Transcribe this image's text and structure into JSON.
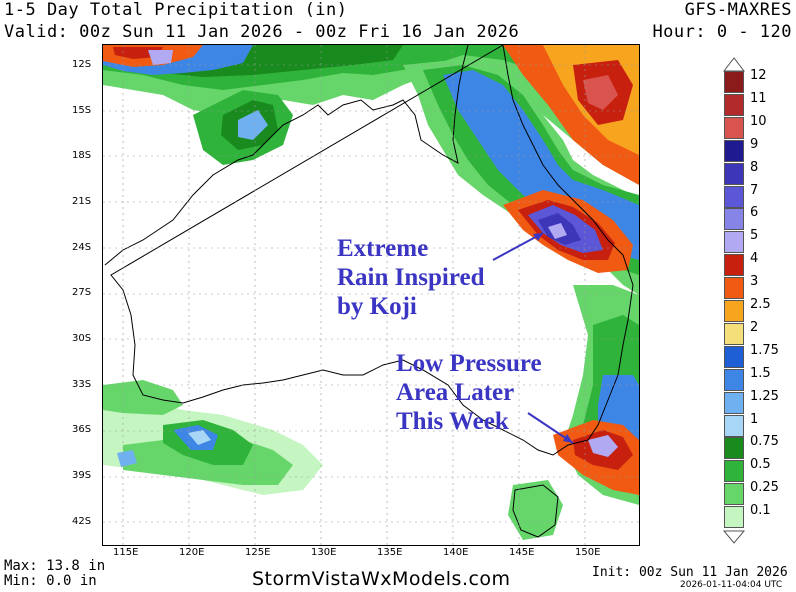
{
  "header": {
    "title": "1-5 Day Total Precipitation (in)",
    "model": "GFS-MAXRES",
    "valid": "Valid: 00z Sun 11 Jan 2026 - 00z Fri 16 Jan 2026",
    "hour": "Hour: 0 - 120"
  },
  "map": {
    "lat_labels": [
      "12S",
      "15S",
      "18S",
      "21S",
      "24S",
      "27S",
      "30S",
      "33S",
      "36S",
      "39S",
      "42S"
    ],
    "lon_labels": [
      "115E",
      "120E",
      "125E",
      "130E",
      "135E",
      "140E",
      "145E",
      "150E"
    ]
  },
  "annotations": {
    "koji_lines": [
      "Extreme",
      "Rain Inspired",
      "by Koji"
    ],
    "low_lines": [
      "Low Pressure",
      "Area Later",
      "This Week"
    ],
    "text_color": "#3a35c2"
  },
  "legend": {
    "values": [
      "12",
      "11",
      "10",
      "9",
      "8",
      "7",
      "6",
      "5",
      "4",
      "3",
      "2.5",
      "2",
      "1.75",
      "1.5",
      "1.25",
      "1",
      "0.75",
      "0.5",
      "0.25",
      "0.1"
    ],
    "colors": [
      "#8b1a1a",
      "#b22a2a",
      "#d9534f",
      "#1f1a8f",
      "#3d36b8",
      "#5b57d6",
      "#8784e8",
      "#b1aaf3",
      "#c8200e",
      "#f05a12",
      "#f7a51e",
      "#f5df7a",
      "#1f5fd6",
      "#3d86e6",
      "#6fb0f0",
      "#a8d6f7",
      "#198a1e",
      "#2fb33a",
      "#66d66b",
      "#c5f5c0"
    ]
  },
  "footer": {
    "max": "Max: 13.8 in",
    "min": "Min: 0.0 in",
    "site": "StormVistaWxModels.com",
    "init": "Init: 00z Sun 11 Jan 2026",
    "stamp": "2026-01-11-04:04 UTC"
  }
}
